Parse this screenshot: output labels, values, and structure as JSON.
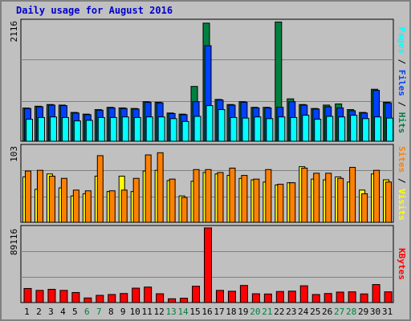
{
  "title": "Daily usage for August 2016",
  "colors": {
    "background": "#c0c0c0",
    "title": "#0000cc",
    "hits": "#008040",
    "files": "#0040ff",
    "pages": "#00ffff",
    "visits": "#ffff00",
    "sites": "#ff8000",
    "kbytes": "#ff0000",
    "weekend": "#008040"
  },
  "chart_data": [
    {
      "type": "bar",
      "name": "hits_files_pages",
      "categories": [
        "1",
        "2",
        "3",
        "4",
        "5",
        "6",
        "7",
        "8",
        "9",
        "10",
        "11",
        "12",
        "13",
        "14",
        "15",
        "16",
        "17",
        "18",
        "19",
        "20",
        "21",
        "22",
        "23",
        "24",
        "25",
        "26",
        "27",
        "28",
        "29",
        "30",
        "31"
      ],
      "weekend_days": [
        "6",
        "7",
        "13",
        "14",
        "20",
        "21",
        "27",
        "28"
      ],
      "ymax": 2116,
      "ymax_label": "2116",
      "ylabel_parts": [
        "Pages",
        "/",
        "Files",
        "/",
        "Hits"
      ],
      "series": [
        {
          "name": "Hits",
          "values": [
            588,
            620,
            650,
            640,
            510,
            480,
            560,
            600,
            590,
            580,
            700,
            690,
            500,
            480,
            970,
            2090,
            740,
            650,
            700,
            600,
            600,
            2110,
            750,
            650,
            580,
            640,
            660,
            560,
            510,
            920,
            690
          ]
        },
        {
          "name": "Files",
          "values": [
            580,
            610,
            640,
            630,
            500,
            470,
            550,
            590,
            580,
            570,
            690,
            680,
            490,
            470,
            700,
            1690,
            730,
            640,
            690,
            590,
            590,
            600,
            700,
            640,
            570,
            610,
            590,
            540,
            500,
            900,
            680
          ]
        },
        {
          "name": "Pages",
          "values": [
            390,
            420,
            430,
            420,
            360,
            370,
            420,
            420,
            430,
            420,
            430,
            430,
            400,
            350,
            440,
            630,
            560,
            420,
            410,
            430,
            400,
            430,
            420,
            460,
            390,
            440,
            430,
            460,
            400,
            430,
            410
          ]
        }
      ]
    },
    {
      "type": "bar",
      "name": "sites_visits",
      "categories": [
        "1",
        "2",
        "3",
        "4",
        "5",
        "6",
        "7",
        "8",
        "9",
        "10",
        "11",
        "12",
        "13",
        "14",
        "15",
        "16",
        "17",
        "18",
        "19",
        "20",
        "21",
        "22",
        "23",
        "24",
        "25",
        "26",
        "27",
        "28",
        "29",
        "30",
        "31"
      ],
      "ymax": 103,
      "ymax_label": "103",
      "ylabel_parts": [
        "Sites",
        "/",
        "Visits"
      ],
      "series": [
        {
          "name": "Visits",
          "values": [
            62,
            45,
            66,
            47,
            36,
            39,
            63,
            42,
            63,
            42,
            70,
            71,
            57,
            36,
            56,
            68,
            66,
            64,
            60,
            58,
            55,
            51,
            54,
            76,
            59,
            58,
            62,
            55,
            44,
            66,
            58
          ]
        },
        {
          "name": "Sites",
          "values": [
            70,
            71,
            63,
            60,
            44,
            43,
            91,
            43,
            44,
            60,
            92,
            95,
            59,
            34,
            72,
            72,
            68,
            74,
            64,
            59,
            72,
            52,
            54,
            74,
            67,
            67,
            60,
            75,
            39,
            71,
            55
          ]
        }
      ]
    },
    {
      "type": "bar",
      "name": "kbytes",
      "categories": [
        "1",
        "2",
        "3",
        "4",
        "5",
        "6",
        "7",
        "8",
        "9",
        "10",
        "11",
        "12",
        "13",
        "14",
        "15",
        "16",
        "17",
        "18",
        "19",
        "20",
        "21",
        "22",
        "23",
        "24",
        "25",
        "26",
        "27",
        "28",
        "29",
        "30",
        "31"
      ],
      "ymax": 89116,
      "ymax_label": "89116",
      "ylabel_parts": [
        "KBytes"
      ],
      "series": [
        {
          "name": "KBytes",
          "values": [
            16800,
            14500,
            15800,
            14500,
            12000,
            5500,
            8600,
            9600,
            10800,
            17200,
            18500,
            10500,
            4500,
            5200,
            19500,
            89116,
            14500,
            13500,
            20400,
            10500,
            10200,
            13200,
            13600,
            20000,
            9600,
            10800,
            12500,
            12800,
            10300,
            21500,
            12800
          ]
        }
      ]
    }
  ]
}
